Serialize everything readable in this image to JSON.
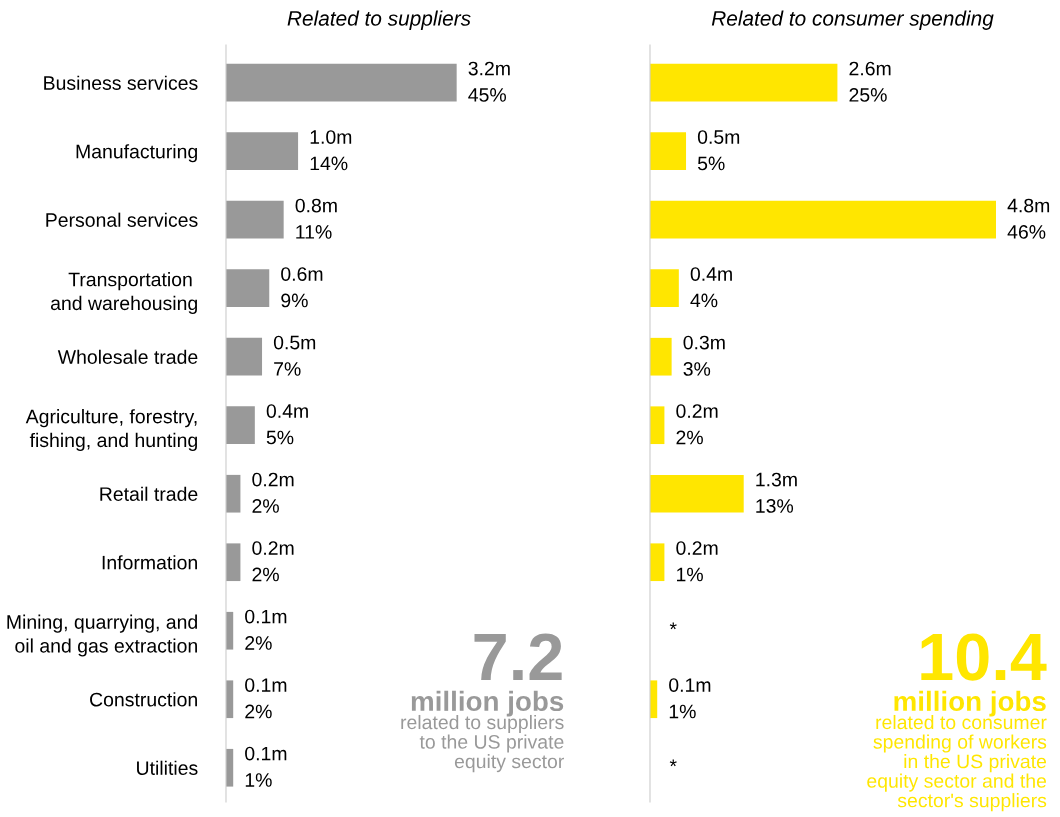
{
  "chart_data": [
    {
      "type": "bar",
      "orientation": "horizontal",
      "title": "Related to suppliers",
      "tick_labels": "y",
      "categories": [
        "Business services",
        "Manufacturing",
        "Personal services",
        "Transportation \nand warehousing",
        "Wholesale trade",
        "Agriculture, forestry,\nfishing, and hunting",
        "Retail trade",
        "Information",
        "Mining, quarrying, and\noil and gas extraction",
        "Construction",
        "Utilities"
      ],
      "values": [
        3.2,
        1.0,
        0.8,
        0.6,
        0.5,
        0.4,
        0.2,
        0.2,
        0.1,
        0.1,
        0.1
      ],
      "value_labels": [
        "3.2m",
        "1.0m",
        "0.8m",
        "0.6m",
        "0.5m",
        "0.4m",
        "0.2m",
        "0.2m",
        "0.1m",
        "0.1m",
        "0.1m"
      ],
      "color": "#999999",
      "annotations": [
        "7.2",
        "million jobs",
        "related to suppliers\nto the US private\nequity sector",
        {
          "text": "45%",
          "x": 3.2
        },
        {
          "text": "14%",
          "x": 1.0
        },
        {
          "text": "11%",
          "x": 0.8
        },
        {
          "text": "9%",
          "x": 0.6
        },
        {
          "text": "7%",
          "x": 0.5
        },
        {
          "text": "5%",
          "x": 0.4
        },
        {
          "text": "2%",
          "x": 0.2
        },
        {
          "text": "2%",
          "x": 0.2
        },
        {
          "text": "2%",
          "x": 0.1
        },
        {
          "text": "2%",
          "x": 0.1
        },
        {
          "text": "1%",
          "x": 0.1
        }
      ]
    },
    {
      "type": "bar",
      "orientation": "horizontal",
      "title": "Related to consumer spending",
      "tick_labels": false,
      "categories": [
        null,
        null,
        null,
        null,
        null,
        null,
        null,
        null,
        null,
        null,
        null
      ],
      "values": [
        2.6,
        0.5,
        4.8,
        0.4,
        0.3,
        0.2,
        1.3,
        0.2,
        null,
        0.1,
        null
      ],
      "value_labels": [
        "2.6m",
        "0.5m",
        "4.8m",
        "0.4m",
        "0.3m",
        "0.2m",
        "1.3m",
        "0.2m",
        "*",
        "0.1m",
        "*"
      ],
      "color": "#ffe600",
      "annotations": [
        "10.4",
        "million jobs",
        "related to consumer\nspending of workers\nin the US private\nequity sector and the\nsector's suppliers",
        {
          "text": "25%",
          "x": 2.6
        },
        {
          "text": "5%",
          "x": 0.5
        },
        {
          "text": "46%",
          "x": 4.8
        },
        {
          "text": "4%",
          "x": 0.4
        },
        {
          "text": "3%",
          "x": 0.3
        },
        {
          "text": "2%",
          "x": 0.2
        },
        {
          "text": "13%",
          "x": 1.3
        },
        {
          "text": "1%",
          "x": 0.2
        },
        {
          "text": "1%",
          "x": 0.1
        }
      ]
    }
  ]
}
